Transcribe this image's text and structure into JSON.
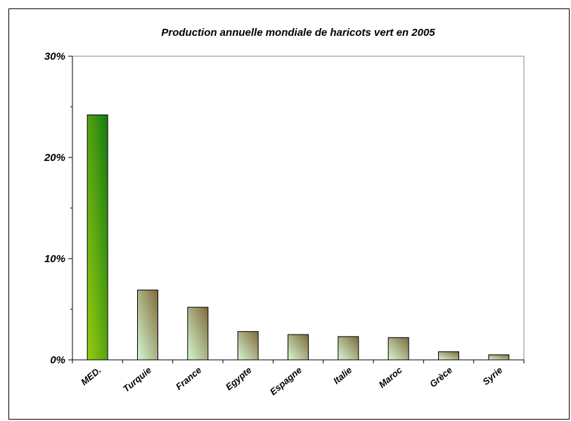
{
  "chart_data": {
    "type": "bar",
    "title": "Production annuelle mondiale de haricots vert en 2005",
    "xlabel": "",
    "ylabel": "",
    "categories": [
      "MED.",
      "Turquie",
      "France",
      "Egypte",
      "Espagne",
      "Italie",
      "Maroc",
      "Grèce",
      "Syrie"
    ],
    "values": [
      24.2,
      6.9,
      5.2,
      2.8,
      2.5,
      2.3,
      2.2,
      0.8,
      0.5
    ],
    "ylim": [
      0,
      30
    ],
    "yticks": [
      0,
      10,
      20,
      30
    ],
    "ytick_labels": [
      "0%",
      "10%",
      "20%",
      "30%"
    ],
    "grid": false,
    "legend": "none",
    "colors": {
      "highlight_top": "#127a12",
      "highlight_bottom": "#9acd10",
      "bar_top": "#7f6a3a",
      "bar_bottom": "#d6f8d2",
      "outline": "#000000",
      "axis": "#000000"
    }
  }
}
